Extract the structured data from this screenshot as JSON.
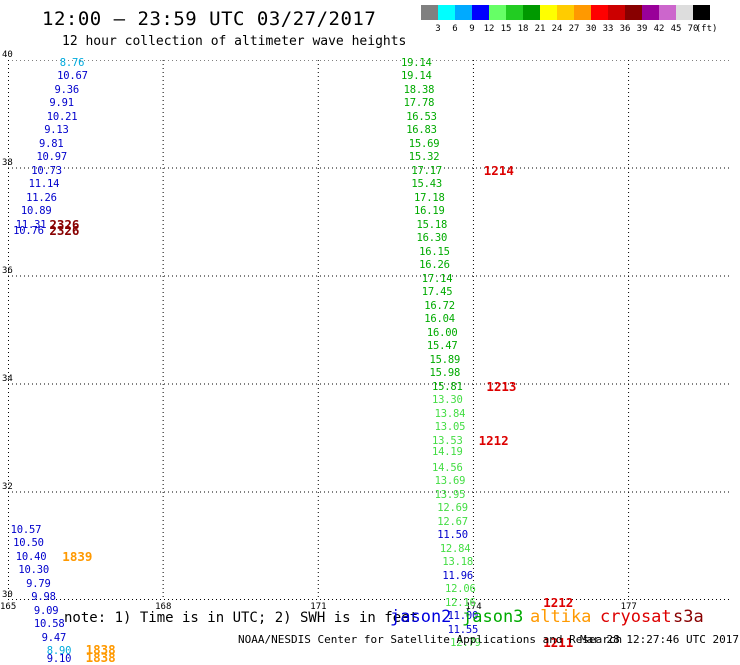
{
  "header": {
    "title": "12:00 – 23:59 UTC 03/27/2017",
    "subtitle": "12 hour collection of altimeter wave heights"
  },
  "legend": {
    "unit": "(ft)",
    "swatches": [
      "#808080",
      "#00ffff",
      "#00aaff",
      "#0000ff",
      "#66ff66",
      "#22cc22",
      "#009900",
      "#ffff00",
      "#ffcc00",
      "#ff9900",
      "#ff0000",
      "#cc0000",
      "#880000",
      "#990099",
      "#cc66cc",
      "#dddddd",
      "#000000"
    ],
    "ticks": [
      "3",
      "6",
      "9",
      "12",
      "15",
      "18",
      "21",
      "24",
      "27",
      "30",
      "33",
      "36",
      "39",
      "42",
      "45",
      "70"
    ]
  },
  "map": {
    "lon_ticks": [
      "165",
      "168",
      "171",
      "174",
      "177"
    ],
    "lat_ticks": [
      "40",
      "38",
      "36",
      "34",
      "32",
      "30"
    ],
    "lon_range": [
      165,
      179
    ],
    "lat_range": [
      30,
      40
    ],
    "grid_style": "dotted"
  },
  "colors": {
    "blue": "#0000cc",
    "green": "#00aa00",
    "lightgreen": "#44dd44",
    "cyan": "#00aadd",
    "orange": "#ff9900",
    "red": "#dd0000",
    "darkred": "#880000"
  },
  "wave_labels": [
    {
      "lon": 166.0,
      "lat": 39.95,
      "text": "8.76",
      "color": "cyan"
    },
    {
      "lon": 165.95,
      "lat": 39.7,
      "text": "10.67",
      "color": "blue"
    },
    {
      "lon": 165.9,
      "lat": 39.45,
      "text": "9.36",
      "color": "blue"
    },
    {
      "lon": 165.8,
      "lat": 39.2,
      "text": "9.91",
      "color": "blue"
    },
    {
      "lon": 165.75,
      "lat": 38.95,
      "text": "10.21",
      "color": "blue"
    },
    {
      "lon": 165.7,
      "lat": 38.7,
      "text": "9.13",
      "color": "blue"
    },
    {
      "lon": 165.6,
      "lat": 38.45,
      "text": "9.81",
      "color": "blue"
    },
    {
      "lon": 165.55,
      "lat": 38.2,
      "text": "10.97",
      "color": "blue"
    },
    {
      "lon": 165.45,
      "lat": 37.95,
      "text": "10.73",
      "color": "blue"
    },
    {
      "lon": 165.4,
      "lat": 37.7,
      "text": "11.14",
      "color": "blue"
    },
    {
      "lon": 165.35,
      "lat": 37.45,
      "text": "11.26",
      "color": "blue"
    },
    {
      "lon": 165.25,
      "lat": 37.2,
      "text": "10.89",
      "color": "blue"
    },
    {
      "lon": 165.15,
      "lat": 36.95,
      "text": "11.31",
      "color": "blue"
    },
    {
      "lon": 165.1,
      "lat": 36.83,
      "text": "10.76",
      "color": "blue"
    },
    {
      "lon": 172.6,
      "lat": 39.95,
      "text": "19.14",
      "color": "green"
    },
    {
      "lon": 172.6,
      "lat": 39.7,
      "text": "19.14",
      "color": "green"
    },
    {
      "lon": 172.65,
      "lat": 39.45,
      "text": "18.38",
      "color": "green"
    },
    {
      "lon": 172.65,
      "lat": 39.2,
      "text": "17.78",
      "color": "green"
    },
    {
      "lon": 172.7,
      "lat": 38.95,
      "text": "16.53",
      "color": "green"
    },
    {
      "lon": 172.7,
      "lat": 38.7,
      "text": "16.83",
      "color": "green"
    },
    {
      "lon": 172.75,
      "lat": 38.45,
      "text": "15.69",
      "color": "green"
    },
    {
      "lon": 172.75,
      "lat": 38.2,
      "text": "15.32",
      "color": "green"
    },
    {
      "lon": 172.8,
      "lat": 37.95,
      "text": "17.17",
      "color": "green"
    },
    {
      "lon": 172.8,
      "lat": 37.7,
      "text": "15.43",
      "color": "green"
    },
    {
      "lon": 172.85,
      "lat": 37.45,
      "text": "17.18",
      "color": "green"
    },
    {
      "lon": 172.85,
      "lat": 37.2,
      "text": "16.19",
      "color": "green"
    },
    {
      "lon": 172.9,
      "lat": 36.95,
      "text": "15.18",
      "color": "green"
    },
    {
      "lon": 172.9,
      "lat": 36.7,
      "text": "16.30",
      "color": "green"
    },
    {
      "lon": 172.95,
      "lat": 36.45,
      "text": "16.15",
      "color": "green"
    },
    {
      "lon": 172.95,
      "lat": 36.2,
      "text": "16.26",
      "color": "green"
    },
    {
      "lon": 173.0,
      "lat": 35.95,
      "text": "17.14",
      "color": "green"
    },
    {
      "lon": 173.0,
      "lat": 35.7,
      "text": "17.45",
      "color": "green"
    },
    {
      "lon": 173.05,
      "lat": 35.45,
      "text": "16.72",
      "color": "green"
    },
    {
      "lon": 173.05,
      "lat": 35.2,
      "text": "16.04",
      "color": "green"
    },
    {
      "lon": 173.1,
      "lat": 34.95,
      "text": "16.00",
      "color": "green"
    },
    {
      "lon": 173.1,
      "lat": 34.7,
      "text": "15.47",
      "color": "green"
    },
    {
      "lon": 173.15,
      "lat": 34.45,
      "text": "15.89",
      "color": "green"
    },
    {
      "lon": 173.15,
      "lat": 34.2,
      "text": "15.98",
      "color": "green"
    },
    {
      "lon": 173.2,
      "lat": 33.95,
      "text": "15.81",
      "color": "green"
    },
    {
      "lon": 173.2,
      "lat": 33.7,
      "text": "13.30",
      "color": "lightgreen"
    },
    {
      "lon": 173.25,
      "lat": 33.45,
      "text": "13.84",
      "color": "lightgreen"
    },
    {
      "lon": 173.25,
      "lat": 33.2,
      "text": "13.05",
      "color": "lightgreen"
    },
    {
      "lon": 173.2,
      "lat": 32.95,
      "text": "13.53",
      "color": "lightgreen"
    },
    {
      "lon": 173.2,
      "lat": 32.75,
      "text": "14.19",
      "color": "lightgreen"
    },
    {
      "lon": 173.2,
      "lat": 32.45,
      "text": "14.56",
      "color": "lightgreen"
    },
    {
      "lon": 173.25,
      "lat": 32.2,
      "text": "13.69",
      "color": "lightgreen"
    },
    {
      "lon": 173.25,
      "lat": 31.95,
      "text": "13.95",
      "color": "lightgreen"
    },
    {
      "lon": 173.3,
      "lat": 31.7,
      "text": "12.69",
      "color": "lightgreen"
    },
    {
      "lon": 173.3,
      "lat": 31.45,
      "text": "12.67",
      "color": "lightgreen"
    },
    {
      "lon": 173.3,
      "lat": 31.2,
      "text": "11.50",
      "color": "blue"
    },
    {
      "lon": 173.35,
      "lat": 30.95,
      "text": "12.84",
      "color": "lightgreen"
    },
    {
      "lon": 173.4,
      "lat": 30.7,
      "text": "13.18",
      "color": "lightgreen"
    },
    {
      "lon": 173.4,
      "lat": 30.45,
      "text": "11.96",
      "color": "blue"
    },
    {
      "lon": 173.45,
      "lat": 30.2,
      "text": "12.06",
      "color": "lightgreen"
    },
    {
      "lon": 173.45,
      "lat": 29.95,
      "text": "12.16",
      "color": "lightgreen"
    },
    {
      "lon": 173.5,
      "lat": 29.7,
      "text": "11.00",
      "color": "blue"
    },
    {
      "lon": 173.5,
      "lat": 29.45,
      "text": "11.55",
      "color": "blue"
    },
    {
      "lon": 173.55,
      "lat": 29.2,
      "text": "12.79",
      "color": "lightgreen"
    },
    {
      "lon": 165.05,
      "lat": 31.3,
      "text": "10.57",
      "color": "blue"
    },
    {
      "lon": 165.1,
      "lat": 31.05,
      "text": "10.50",
      "color": "blue"
    },
    {
      "lon": 165.15,
      "lat": 30.8,
      "text": "10.40",
      "color": "blue"
    },
    {
      "lon": 165.2,
      "lat": 30.55,
      "text": "10.30",
      "color": "blue"
    },
    {
      "lon": 165.35,
      "lat": 30.3,
      "text": "9.79",
      "color": "blue"
    },
    {
      "lon": 165.45,
      "lat": 30.05,
      "text": "9.98",
      "color": "blue"
    },
    {
      "lon": 165.5,
      "lat": 29.8,
      "text": "9.09",
      "color": "blue"
    },
    {
      "lon": 165.5,
      "lat": 29.55,
      "text": "10.58",
      "color": "blue"
    },
    {
      "lon": 165.65,
      "lat": 29.3,
      "text": "9.47",
      "color": "blue"
    },
    {
      "lon": 165.75,
      "lat": 29.05,
      "text": "8.90",
      "color": "cyan"
    },
    {
      "lon": 165.75,
      "lat": 28.9,
      "text": "9.10",
      "color": "blue"
    }
  ],
  "time_labels": [
    {
      "lon": 174.2,
      "lat": 37.95,
      "text": "1214",
      "color": "red"
    },
    {
      "lon": 174.25,
      "lat": 33.95,
      "text": "1213",
      "color": "red"
    },
    {
      "lon": 174.1,
      "lat": 32.95,
      "text": "1212",
      "color": "red"
    },
    {
      "lon": 175.35,
      "lat": 29.95,
      "text": "1212",
      "color": "red"
    },
    {
      "lon": 175.35,
      "lat": 29.2,
      "text": "1211",
      "color": "red"
    },
    {
      "lon": 165.8,
      "lat": 36.95,
      "text": "2326",
      "color": "darkred"
    },
    {
      "lon": 165.8,
      "lat": 36.83,
      "text": "2326",
      "color": "darkred"
    },
    {
      "lon": 166.05,
      "lat": 30.8,
      "text": "1839",
      "color": "orange"
    },
    {
      "lon": 166.5,
      "lat": 29.08,
      "text": "1838",
      "color": "orange"
    },
    {
      "lon": 166.5,
      "lat": 28.93,
      "text": "1838",
      "color": "orange"
    }
  ],
  "footer": {
    "note": "note: 1) Time is in UTC; 2) SWH is in feet",
    "satellites": [
      {
        "name": "jason2",
        "color": "#0000dd"
      },
      {
        "name": "jason3",
        "color": "#00aa00"
      },
      {
        "name": "altika",
        "color": "#ff9900"
      },
      {
        "name": "cryosat",
        "color": "#dd0000"
      },
      {
        "name": "s3a",
        "color": "#880000"
      }
    ],
    "credit": "NOAA/NESDIS Center for Satellite Applications and Research",
    "timestamp": "Mar 28 12:27:46 UTC 2017"
  }
}
